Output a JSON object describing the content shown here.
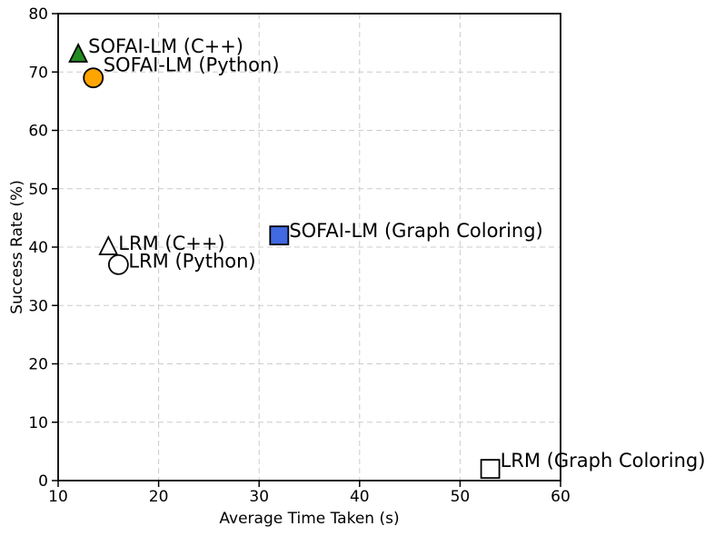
{
  "chart_data": {
    "type": "scatter",
    "title": "",
    "xlabel": "Average Time Taken (s)",
    "ylabel": "Success Rate (%)",
    "xlim": [
      10,
      60
    ],
    "ylim": [
      0,
      80
    ],
    "xticks": [
      10,
      20,
      30,
      40,
      50,
      60
    ],
    "yticks": [
      0,
      10,
      20,
      30,
      40,
      50,
      60,
      70,
      80
    ],
    "grid": "dashed",
    "grid_color": "#cccccc",
    "legend_position": "none (labels annotated next to points)",
    "points": [
      {
        "label": "SOFAI-LM (C++)",
        "x": 12,
        "y": 73,
        "marker": "triangle-up",
        "fill": "#228B22",
        "edge": "#000000",
        "label_dy": -8
      },
      {
        "label": "SOFAI-LM (Python)",
        "x": 13.5,
        "y": 69,
        "marker": "circle",
        "fill": "#FFA500",
        "edge": "#000000",
        "label_dy": -13
      },
      {
        "label": "LRM (C++)",
        "x": 15,
        "y": 40,
        "marker": "triangle-up",
        "fill": "#FFFFFF",
        "edge": "#000000",
        "label_dy": -3
      },
      {
        "label": "LRM (Python)",
        "x": 16,
        "y": 37,
        "marker": "circle",
        "fill": "#FFFFFF",
        "edge": "#000000",
        "label_dy": -3
      },
      {
        "label": "SOFAI-LM (Graph Coloring)",
        "x": 32,
        "y": 42,
        "marker": "square",
        "fill": "#4169E1",
        "edge": "#000000",
        "label_dy": -4
      },
      {
        "label": "LRM (Graph Coloring)",
        "x": 53,
        "y": 2,
        "marker": "square",
        "fill": "#FFFFFF",
        "edge": "#000000",
        "label_dy": -8
      }
    ]
  }
}
